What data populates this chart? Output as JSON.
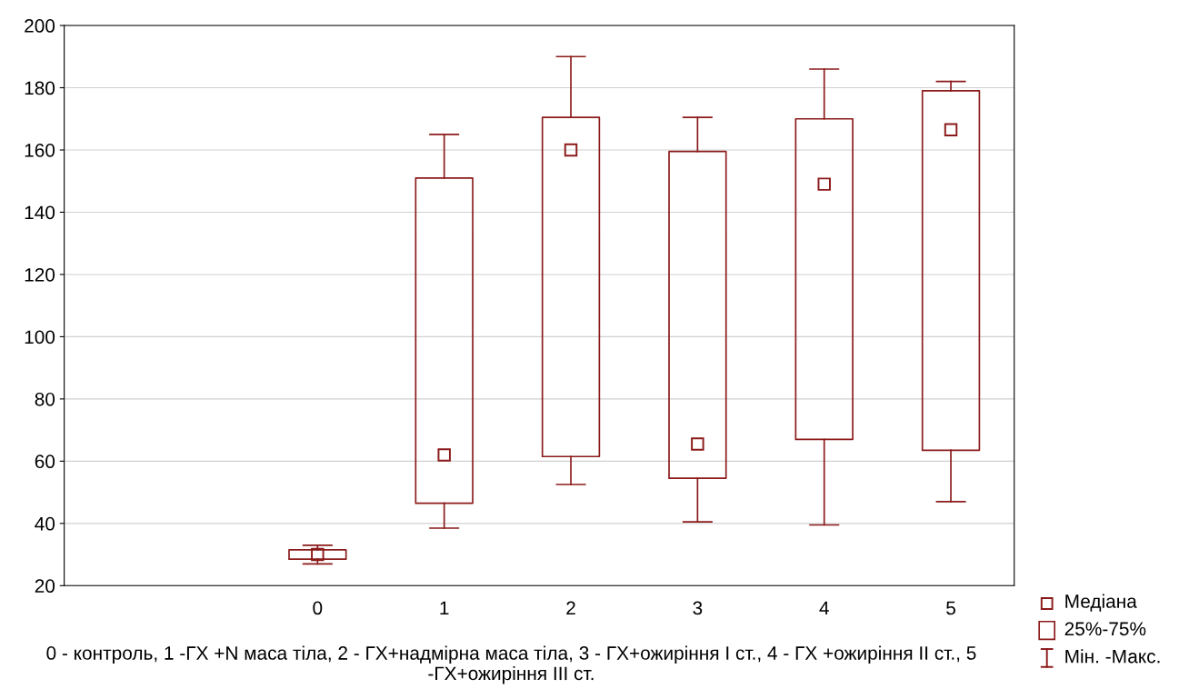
{
  "chart_data": {
    "type": "box",
    "categories": [
      null,
      "0",
      "1",
      "2",
      "3",
      "4",
      "5"
    ],
    "boxes": [
      null,
      {
        "low": 27,
        "q1": 28.5,
        "median": 30,
        "q3": 31.5,
        "high": 33
      },
      {
        "low": 38.5,
        "q1": 46.5,
        "median": 62,
        "q3": 151,
        "high": 165
      },
      {
        "low": 52.5,
        "q1": 61.5,
        "median": 160,
        "q3": 170.5,
        "high": 190
      },
      {
        "low": 40.5,
        "q1": 54.5,
        "median": 65.5,
        "q3": 159.5,
        "high": 170.5
      },
      {
        "low": 39.5,
        "q1": 67,
        "median": 149,
        "q3": 170,
        "high": 186
      },
      {
        "low": 47,
        "q1": 63.5,
        "median": 166.5,
        "q3": 179,
        "high": 182
      }
    ],
    "color": "#8b1a1a",
    "xlabel": "0 - контроль, 1 -ГХ +N маса тіла, 2 - ГХ+надмірна маса тіла, 3 - ГХ+ожиріння І ст., 4 - ГХ +ожиріння ІІ ст., 5 -ГХ+ожиріння ІІІ ст.",
    "annotations": [
      "Медіана",
      "25%-75%",
      "Мін. -Макс."
    ],
    "ylim": [
      20,
      200
    ],
    "yticks": [
      20,
      40,
      60,
      80,
      100,
      120,
      140,
      160,
      180,
      200
    ],
    "grid": "y",
    "marker": "square"
  }
}
